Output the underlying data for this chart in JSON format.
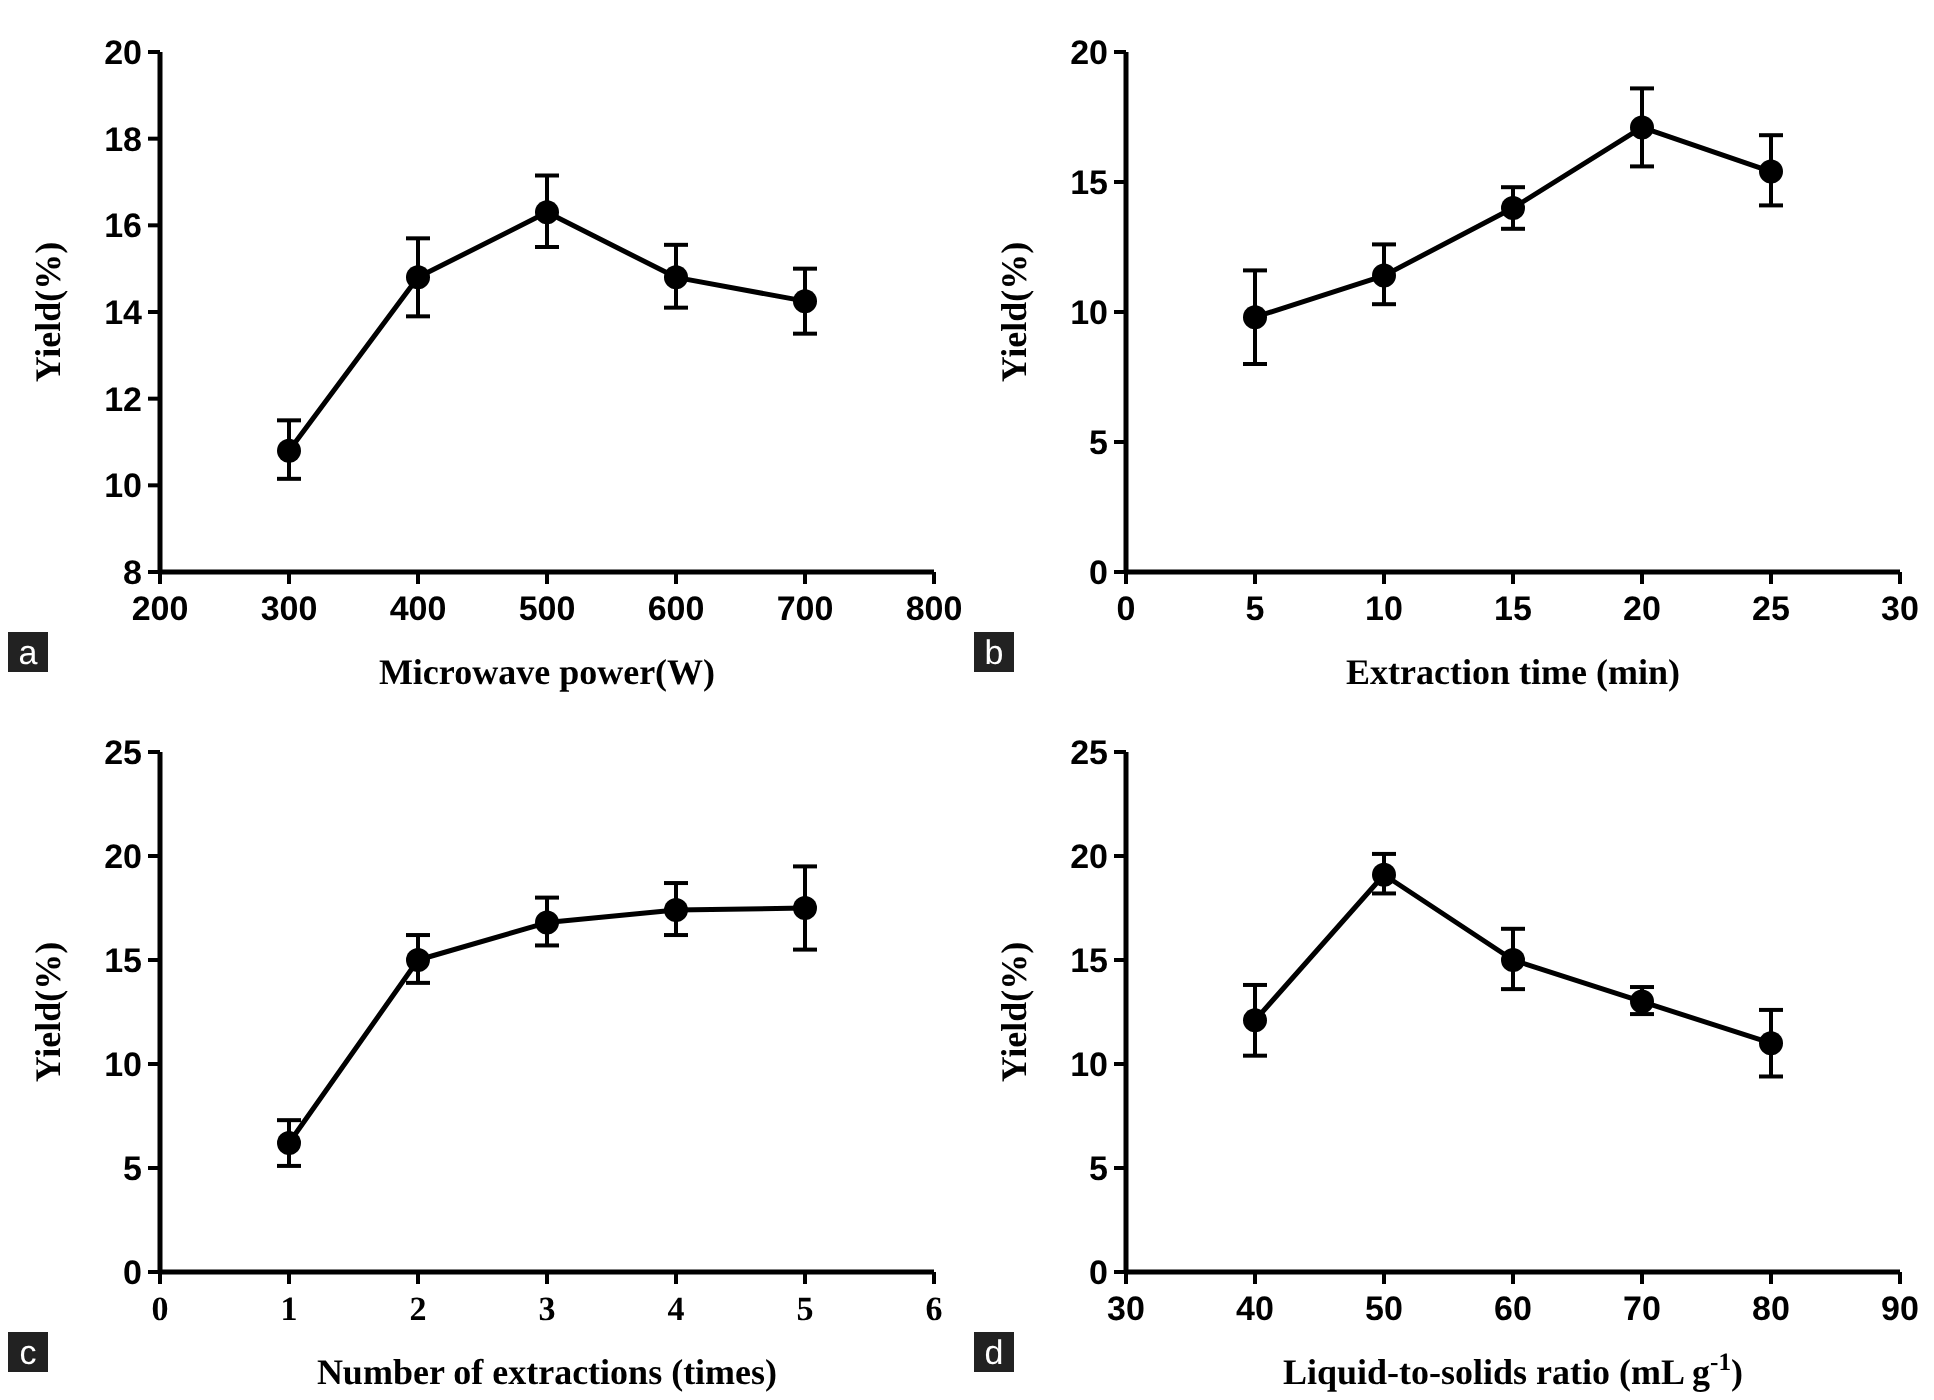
{
  "chart_data": [
    {
      "type": "line",
      "xlabel": "Microwave power(W)",
      "ylabel": "Yield(%)",
      "annotations": [
        "a"
      ],
      "x": [
        300,
        400,
        500,
        600,
        700
      ],
      "xlim": [
        200,
        800
      ],
      "xticks": [
        200,
        300,
        400,
        500,
        600,
        700,
        800
      ],
      "ylim": [
        8,
        20
      ],
      "yticks": [
        8,
        10,
        12,
        14,
        16,
        18,
        20
      ],
      "marker": "circle",
      "line_style": "solid",
      "grid": false,
      "series": [
        {
          "color": "#000000",
          "values": [
            10.8,
            14.8,
            16.3,
            14.8,
            14.25
          ],
          "errors": [
            [
              10.15,
              11.5
            ],
            [
              13.9,
              15.7
            ],
            [
              15.5,
              17.15
            ],
            [
              14.1,
              15.55
            ],
            [
              13.5,
              15.0
            ]
          ]
        }
      ]
    },
    {
      "type": "line",
      "xlabel": "Extraction time (min)",
      "ylabel": "Yield(%)",
      "annotations": [
        "b"
      ],
      "x": [
        5,
        10,
        15,
        20,
        25
      ],
      "xlim": [
        0,
        30
      ],
      "xticks": [
        0,
        5,
        10,
        15,
        20,
        25,
        30
      ],
      "ylim": [
        0,
        20
      ],
      "yticks": [
        0,
        5,
        10,
        15,
        20
      ],
      "marker": "circle",
      "line_style": "solid",
      "grid": false,
      "series": [
        {
          "color": "#000000",
          "values": [
            9.8,
            11.4,
            14.0,
            17.1,
            15.4
          ],
          "errors": [
            [
              8.0,
              11.6
            ],
            [
              10.3,
              12.6
            ],
            [
              13.2,
              14.8
            ],
            [
              15.6,
              18.6
            ],
            [
              14.1,
              16.8
            ]
          ]
        }
      ]
    },
    {
      "type": "line",
      "xlabel": "Number of extractions (times)",
      "ylabel": "Yield(%)",
      "annotations": [
        "c"
      ],
      "x": [
        1,
        2,
        3,
        4,
        5
      ],
      "xlim": [
        0,
        6
      ],
      "xticks": [
        0,
        1,
        2,
        3,
        4,
        5,
        6
      ],
      "ylim": [
        0,
        25
      ],
      "yticks": [
        0,
        5,
        10,
        15,
        20,
        25
      ],
      "marker": "circle",
      "line_style": "solid",
      "grid": false,
      "series": [
        {
          "color": "#000000",
          "values": [
            6.2,
            15.0,
            16.8,
            17.4,
            17.5
          ],
          "errors": [
            [
              5.1,
              7.3
            ],
            [
              13.9,
              16.2
            ],
            [
              15.7,
              18.0
            ],
            [
              16.2,
              18.7
            ],
            [
              15.5,
              19.5
            ]
          ]
        }
      ]
    },
    {
      "type": "line",
      "xlabel": "Liquid-to-solids ratio (mL g$^{-1}$)",
      "ylabel": "Yield(%)",
      "annotations": [
        "d"
      ],
      "x": [
        40,
        50,
        60,
        70,
        80
      ],
      "xlim": [
        30,
        90
      ],
      "xticks": [
        30,
        40,
        50,
        60,
        70,
        80,
        90
      ],
      "ylim": [
        0,
        25
      ],
      "yticks": [
        0,
        5,
        10,
        15,
        20,
        25
      ],
      "marker": "circle",
      "line_style": "solid",
      "grid": false,
      "series": [
        {
          "color": "#000000",
          "values": [
            12.1,
            19.1,
            15.0,
            13.0,
            11.0
          ],
          "errors": [
            [
              10.4,
              13.8
            ],
            [
              18.2,
              20.1
            ],
            [
              13.6,
              16.5
            ],
            [
              12.4,
              13.7
            ],
            [
              9.4,
              12.6
            ]
          ]
        }
      ]
    }
  ]
}
